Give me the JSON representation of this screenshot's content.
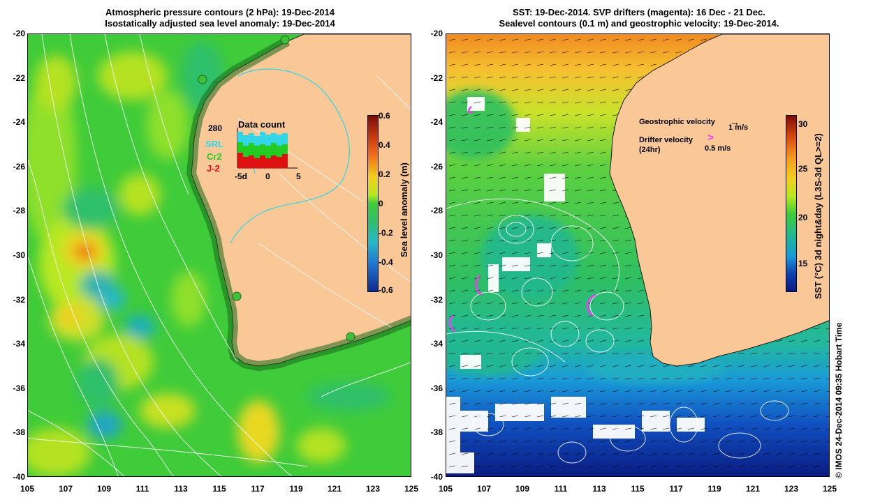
{
  "left_panel": {
    "title_line1": "Atmospheric pressure contours (2 hPa): 19-Dec-2014",
    "title_line2": "Isostatically adjusted sea level anomaly: 19-Dec-2014",
    "colorbar_label": "Sea level anomaly (m)",
    "colorbar_ticks": [
      "0.6",
      "0.4",
      "0.2",
      "0",
      "-0.2",
      "-0.4",
      "-0.6"
    ],
    "inset": {
      "title": "Data count",
      "max_count": "280",
      "legend": [
        {
          "label": "SRL",
          "color": "#33d6e6"
        },
        {
          "label": "Cr2",
          "color": "#22cc22"
        },
        {
          "label": "J-2",
          "color": "#dd1111"
        }
      ],
      "x_ticks": [
        "-5d",
        "0",
        "5"
      ]
    }
  },
  "right_panel": {
    "title_line1": "SST: 19-Dec-2014. SVP drifters (magenta): 16 Dec - 21 Dec.",
    "title_line2": "Sealevel contours (0.1 m) and geostrophic velocity: 19-Dec-2014.",
    "colorbar_label": "SST (°C) 3d night&day (L3S-3d QL>=2)",
    "colorbar_ticks": [
      "30",
      "25",
      "20",
      "15"
    ],
    "legend": {
      "geostrophic_label": "Geostrophic velocity",
      "geostrophic_scale": "1 m/s",
      "drifter_label_line1": "Drifter velocity",
      "drifter_label_line2": "(24hr)",
      "drifter_scale": "0.5 m/s"
    }
  },
  "y_ticks": [
    "-20",
    "-22",
    "-24",
    "-26",
    "-28",
    "-30",
    "-32",
    "-34",
    "-36",
    "-38",
    "-40"
  ],
  "x_ticks": [
    "105",
    "107",
    "109",
    "111",
    "113",
    "115",
    "117",
    "119",
    "121",
    "123",
    "125"
  ],
  "copyright": "© IMOS 24-Dec-2014 09:35 Hobart Time",
  "colors": {
    "land": "#fac797",
    "ssh_green": "#30c030",
    "magenta": "#ff33ff"
  }
}
